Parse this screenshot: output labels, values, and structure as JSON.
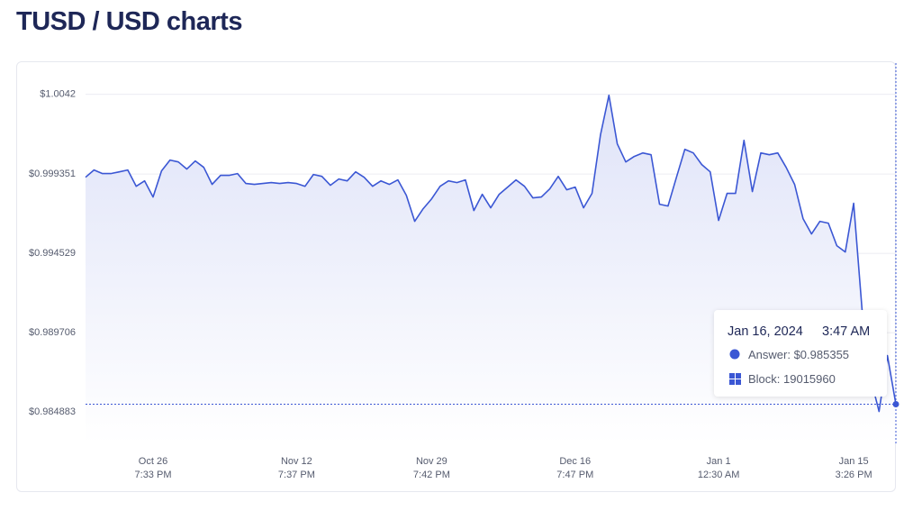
{
  "chart_data": {
    "type": "line",
    "title": "TUSD / USD charts",
    "categories": [
      null,
      null,
      null,
      null,
      null,
      null,
      null,
      null,
      [
        "Oct 26",
        "7:33 PM"
      ],
      null,
      null,
      null,
      null,
      null,
      null,
      null,
      null,
      null,
      null,
      null,
      null,
      null,
      null,
      null,
      null,
      [
        "Nov 12",
        "7:37 PM"
      ],
      null,
      null,
      null,
      null,
      null,
      null,
      null,
      null,
      null,
      null,
      null,
      null,
      null,
      null,
      null,
      [
        "Nov 29",
        "7:42 PM"
      ],
      null,
      null,
      null,
      null,
      null,
      null,
      null,
      null,
      null,
      null,
      null,
      null,
      null,
      null,
      null,
      null,
      [
        "Dec 16",
        "7:47 PM"
      ],
      null,
      null,
      null,
      null,
      null,
      null,
      null,
      null,
      null,
      null,
      null,
      null,
      null,
      null,
      null,
      null,
      [
        "Jan 1",
        "12:30 AM"
      ],
      null,
      null,
      null,
      null,
      null,
      null,
      null,
      null,
      null,
      null,
      null,
      null,
      null,
      null,
      null,
      [
        "Jan 15",
        "3:26 PM"
      ],
      null,
      null,
      null,
      null,
      null
    ],
    "series": [
      {
        "name": "Answer",
        "color": "#3b57d4",
        "values": [
          0.999158,
          0.999597,
          0.999378,
          0.999378,
          0.999487,
          0.999597,
          0.99861,
          0.998939,
          0.997953,
          0.999542,
          1.0002,
          1.00009,
          0.999652,
          1.000145,
          0.999761,
          0.99872,
          0.999268,
          0.999268,
          0.999378,
          0.998775,
          0.99872,
          0.998775,
          0.99883,
          0.998775,
          0.99883,
          0.998775,
          0.99861,
          0.999323,
          0.999213,
          0.998665,
          0.999049,
          0.998939,
          0.999487,
          0.999158,
          0.99861,
          0.998939,
          0.99872,
          0.998994,
          0.998062,
          0.996473,
          0.99724,
          0.997843,
          0.99861,
          0.998939,
          0.99883,
          0.998994,
          0.997131,
          0.998117,
          0.997295,
          0.998117,
          0.998556,
          0.998994,
          0.99861,
          0.997898,
          0.997953,
          0.998446,
          0.999213,
          0.998391,
          0.998556,
          0.997295,
          0.998172,
          1.001734,
          1.004145,
          1.001186,
          1.00009,
          1.000419,
          1.000638,
          1.000528,
          0.997514,
          0.997405,
          0.999158,
          1.000857,
          1.000638,
          0.999926,
          0.999487,
          0.996528,
          0.998172,
          0.998172,
          1.001405,
          0.998282,
          1.000638,
          1.000528,
          1.000638,
          0.999761,
          0.99872,
          0.996638,
          0.995706,
          0.996473,
          0.996364,
          0.994994,
          0.99461,
          0.997569,
          0.991048,
          0.986938,
          0.98491,
          0.988308,
          0.985355
        ]
      }
    ],
    "ylim": [
      0.98297,
      1.0061
    ],
    "yticks": [
      {
        "value": 1.0042,
        "label": "$1.0042"
      },
      {
        "value": 0.999351,
        "label": "$0.999351"
      },
      {
        "value": 0.994529,
        "label": "$0.994529"
      },
      {
        "value": 0.989706,
        "label": "$0.989706"
      },
      {
        "value": 0.984883,
        "label": "$0.984883"
      }
    ],
    "grid": true,
    "tooltip": {
      "date": "Jan 16, 2024",
      "time": "3:47 AM",
      "answer": "Answer: $0.985355",
      "block": "Block: 19015960"
    }
  }
}
